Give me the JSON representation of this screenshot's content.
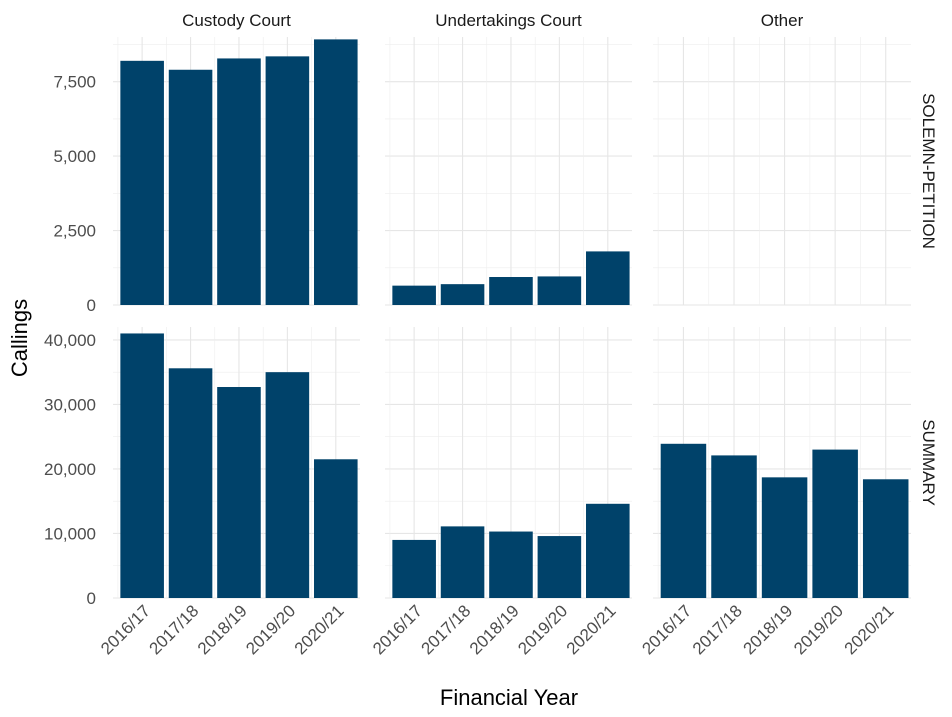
{
  "chart_data": {
    "type": "bar",
    "xlabel": "Financial Year",
    "ylabel": "Callings",
    "categories": [
      "2016/17",
      "2017/18",
      "2018/19",
      "2019/20",
      "2020/21"
    ],
    "bar_color": "#00426A",
    "grid": true,
    "facet_columns": [
      "Custody Court",
      "Undertakings Court",
      "Other"
    ],
    "facet_rows": [
      {
        "label": "SOLEMN-PETITION",
        "ylim": [
          0,
          9000
        ],
        "yticks": [
          0,
          2500,
          5000,
          7500
        ],
        "ytick_labels": [
          "0",
          "2,500",
          "5,000",
          "7,500"
        ],
        "panels": [
          {
            "column": "Custody Court",
            "values": [
              8200,
              7900,
              8280,
              8350,
              8920
            ]
          },
          {
            "column": "Undertakings Court",
            "values": [
              650,
              700,
              940,
              960,
              1800
            ]
          },
          {
            "column": "Other",
            "values": [
              null,
              null,
              null,
              null,
              null
            ]
          }
        ]
      },
      {
        "label": "SUMMARY",
        "ylim": [
          0,
          42000
        ],
        "yticks": [
          0,
          10000,
          20000,
          30000,
          40000
        ],
        "ytick_labels": [
          "0",
          "10,000",
          "20,000",
          "30,000",
          "40,000"
        ],
        "panels": [
          {
            "column": "Custody Court",
            "values": [
              41000,
              35600,
              32700,
              35000,
              21500
            ]
          },
          {
            "column": "Undertakings Court",
            "values": [
              9000,
              11100,
              10300,
              9600,
              14600
            ]
          },
          {
            "column": "Other",
            "values": [
              23900,
              22100,
              18700,
              23000,
              18400
            ]
          }
        ]
      }
    ]
  }
}
